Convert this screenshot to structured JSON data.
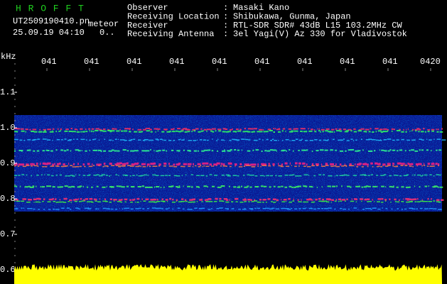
{
  "header": {
    "program": "H R O F F T",
    "file": "UT2509190410.pn",
    "mode": "meteor",
    "datetime": "25.09.19 04:10",
    "status": "0.."
  },
  "info": [
    {
      "label": "Observer",
      "separator": ":",
      "value": "Masaki Kano"
    },
    {
      "label": "Receiving Location",
      "separator": ":",
      "value": "Shibukawa, Gunma, Japan"
    },
    {
      "label": "Receiver",
      "separator": ":",
      "value": "RTL-SDR SDR# 43dB L15 103.2MHz CW"
    },
    {
      "label": "Receiving Antenna",
      "separator": ":",
      "value": "3el Yagi(V) Az 330 for Vladivostok"
    }
  ],
  "time_axis": [
    "041",
    "041",
    "041",
    "041",
    "041",
    "041",
    "041",
    "041",
    "041",
    "0420"
  ],
  "freq_axis": {
    "unit": "kHz",
    "labels": [
      "1.1",
      "1.0",
      "0.9",
      "0.8",
      "0.7",
      "0.6"
    ]
  }
}
